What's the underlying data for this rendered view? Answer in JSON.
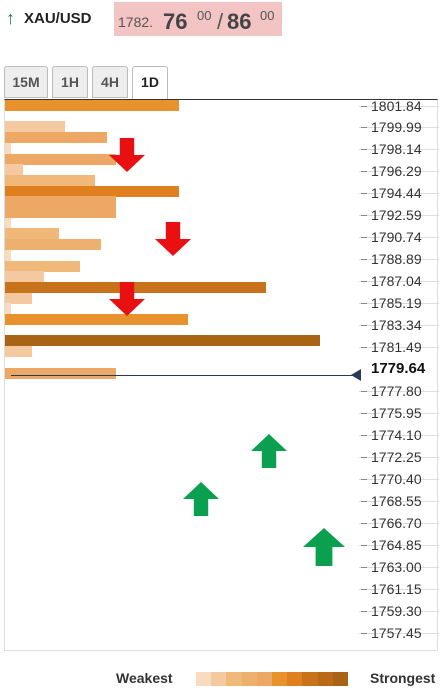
{
  "header": {
    "arrow": "↑",
    "symbol": "XAU/USD",
    "bid_prefix": "1782.",
    "bid_big": "76",
    "bid_sup": "00",
    "separator": "/",
    "ask_big": "86",
    "ask_sup": "00"
  },
  "tabs": [
    "15M",
    "1H",
    "4H",
    "1D"
  ],
  "active_tab": "1D",
  "current_price": "1779.64",
  "price_levels": [
    "1801.84",
    "1799.99",
    "1798.14",
    "1796.29",
    "1794.44",
    "1792.59",
    "1790.74",
    "1788.89",
    "1787.04",
    "1785.19",
    "1783.34",
    "1781.49",
    "1777.80",
    "1775.95",
    "1774.10",
    "1772.25",
    "1770.40",
    "1768.55",
    "1766.70",
    "1764.85",
    "1763.00",
    "1761.15",
    "1759.30",
    "1757.45"
  ],
  "strength_bars": [
    {
      "level": 0,
      "width": 0.58,
      "color": "#e8922e"
    },
    {
      "level": 2,
      "width": 0.2,
      "color": "#f4c9a0"
    },
    {
      "level": 3,
      "width": 0.34,
      "color": "#eda865"
    },
    {
      "level": 4,
      "width": 0.02,
      "color": "#f8dcc0"
    },
    {
      "level": 5,
      "width": 0.37,
      "color": "#eda865"
    },
    {
      "level": 6,
      "width": 0.06,
      "color": "#f4c9a0"
    },
    {
      "level": 7,
      "width": 0.3,
      "color": "#f0b97a"
    },
    {
      "level": 8,
      "width": 0.58,
      "color": "#e07f1e"
    },
    {
      "level": 9,
      "width": 0.37,
      "color": "#eda865"
    },
    {
      "level": 10,
      "width": 0.37,
      "color": "#eda865"
    },
    {
      "level": 11,
      "width": 0.02,
      "color": "#f8dcc0"
    },
    {
      "level": 12,
      "width": 0.18,
      "color": "#f0b97a"
    },
    {
      "level": 13,
      "width": 0.32,
      "color": "#eeb06e"
    },
    {
      "level": 14,
      "width": 0.02,
      "color": "#f8dcc0"
    },
    {
      "level": 15,
      "width": 0.25,
      "color": "#f0b97a"
    },
    {
      "level": 16,
      "width": 0.13,
      "color": "#f4c9a0"
    },
    {
      "level": 17,
      "width": 0.87,
      "color": "#c8721c"
    },
    {
      "level": 18,
      "width": 0.09,
      "color": "#f4c9a0"
    },
    {
      "level": 19,
      "width": 0.02,
      "color": "#f8dcc0"
    },
    {
      "level": 20,
      "width": 0.61,
      "color": "#e8922e"
    },
    {
      "level": 22,
      "width": 1.05,
      "color": "#a86414"
    },
    {
      "level": 23,
      "width": 0.09,
      "color": "#f4c9a0"
    },
    {
      "level": 25,
      "width": 0.37,
      "color": "#eda865"
    }
  ],
  "arrows": [
    {
      "direction": "down",
      "level": 3,
      "color": "#e81010"
    },
    {
      "direction": "down",
      "level": 8,
      "color": "#e81010"
    },
    {
      "direction": "down",
      "level": 10,
      "color": "#e81010"
    },
    {
      "direction": "up",
      "level": 17,
      "color": "#0aa050"
    },
    {
      "direction": "up",
      "level": 20,
      "color": "#0aa050"
    },
    {
      "direction": "up",
      "level": 22,
      "color": "#0aa050"
    }
  ],
  "legend": {
    "weakest": "Weakest",
    "strongest": "Strongest",
    "scale": [
      "#f8dcc0",
      "#f4c9a0",
      "#f0b97a",
      "#eeb06e",
      "#eda865",
      "#e8922e",
      "#e07f1e",
      "#c8721c",
      "#b86a18",
      "#a86414"
    ]
  }
}
